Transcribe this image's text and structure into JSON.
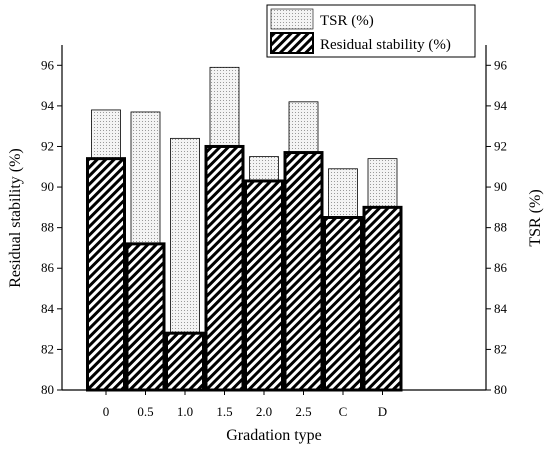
{
  "chart_data": {
    "type": "bar",
    "categories": [
      "0",
      "0.5",
      "1.0",
      "1.5",
      "2.0",
      "2.5",
      "C",
      "D"
    ],
    "series": [
      {
        "name": "TSR (%)",
        "axis": "right",
        "pattern": "dotted",
        "values": [
          93.8,
          93.7,
          92.4,
          95.9,
          91.5,
          94.2,
          90.9,
          91.4
        ]
      },
      {
        "name": "Residual stability (%)",
        "axis": "left",
        "pattern": "hatched",
        "values": [
          91.4,
          87.2,
          82.8,
          92.0,
          90.3,
          91.7,
          88.5,
          89.0
        ]
      }
    ],
    "xlabel": "Gradation type",
    "ylabel_left": "Residual stability (%)",
    "ylabel_right": "TSR (%)",
    "ylim": [
      80,
      97
    ],
    "yticks": [
      "80",
      "82",
      "84",
      "86",
      "88",
      "90",
      "92",
      "94",
      "96"
    ],
    "legend_placement": "top-right",
    "grid": false,
    "colors": {
      "tsr_fill": "#f2f2f2",
      "tsr_dots": "#9a9a9a",
      "hatch": "#000000",
      "hatch_bg": "#ffffff"
    }
  }
}
